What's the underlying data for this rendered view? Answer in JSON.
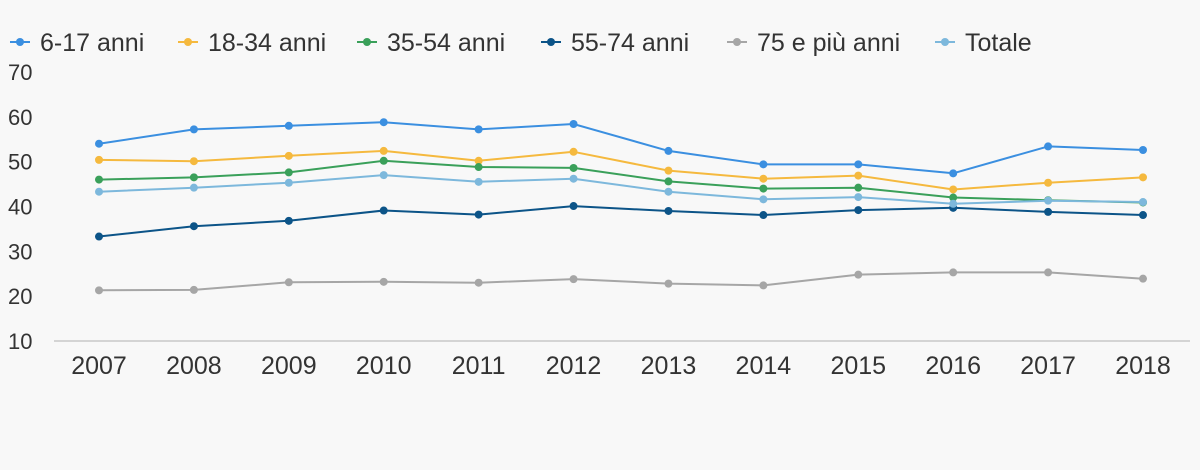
{
  "chart_data": {
    "type": "line",
    "title": "",
    "xlabel": "",
    "ylabel": "",
    "categories": [
      "2007",
      "2008",
      "2009",
      "2010",
      "2011",
      "2012",
      "2013",
      "2014",
      "2015",
      "2016",
      "2017",
      "2018"
    ],
    "ylim": [
      10,
      70
    ],
    "yticks": [
      10,
      20,
      30,
      40,
      50,
      60,
      70
    ],
    "grid": false,
    "legend_position": "top",
    "series": [
      {
        "name": "6-17 anni",
        "color": "#3b8fe0",
        "values": [
          54.0,
          57.2,
          58.0,
          58.8,
          57.2,
          58.4,
          52.4,
          49.4,
          49.4,
          47.4,
          53.4,
          52.6
        ]
      },
      {
        "name": "18-34 anni",
        "color": "#f5b93e",
        "values": [
          50.4,
          50.1,
          51.3,
          52.4,
          50.2,
          52.2,
          48.0,
          46.2,
          46.9,
          43.8,
          45.3,
          46.5
        ]
      },
      {
        "name": "35-54 anni",
        "color": "#3aa05a",
        "values": [
          46.0,
          46.5,
          47.6,
          50.2,
          48.8,
          48.6,
          45.6,
          44.0,
          44.2,
          42.0,
          41.4,
          40.9
        ]
      },
      {
        "name": "55-74 anni",
        "color": "#0c5488",
        "values": [
          33.3,
          35.6,
          36.8,
          39.1,
          38.2,
          40.1,
          39.0,
          38.1,
          39.2,
          39.7,
          38.8,
          38.1
        ]
      },
      {
        "name": "75 e più anni",
        "color": "#a6a6a6",
        "values": [
          21.3,
          21.4,
          23.1,
          23.2,
          23.0,
          23.8,
          22.8,
          22.4,
          24.8,
          25.3,
          25.3,
          23.9
        ]
      },
      {
        "name": "Totale",
        "color": "#7db8dc",
        "values": [
          43.3,
          44.2,
          45.3,
          47.0,
          45.5,
          46.2,
          43.3,
          41.6,
          42.1,
          40.6,
          41.3,
          41.0
        ]
      }
    ]
  }
}
